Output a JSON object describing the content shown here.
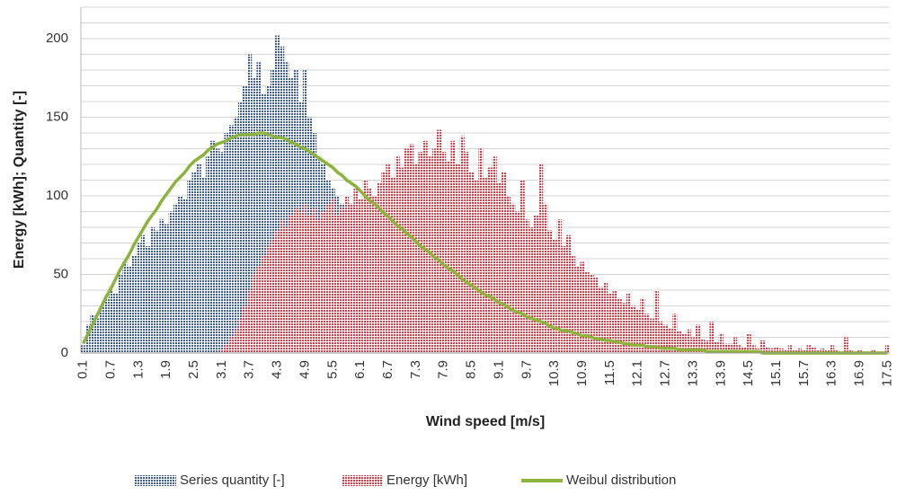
{
  "chart_data": {
    "type": "bar",
    "y_label": "Energy [kWh]; Quantity [-]",
    "x_label": "Wind speed [m/s]",
    "categories": [
      "0.1",
      null,
      null,
      null,
      null,
      null,
      "0.7",
      null,
      null,
      null,
      null,
      null,
      "1.3",
      null,
      null,
      null,
      null,
      null,
      "1.9",
      null,
      null,
      null,
      null,
      null,
      "2.5",
      null,
      null,
      null,
      null,
      null,
      "3.1",
      null,
      null,
      null,
      null,
      null,
      "3.7",
      null,
      null,
      null,
      null,
      null,
      "4.3",
      null,
      null,
      null,
      null,
      null,
      "4.9",
      null,
      null,
      null,
      null,
      null,
      "5.5",
      null,
      null,
      null,
      null,
      null,
      "6.1",
      null,
      null,
      null,
      null,
      null,
      "6.7",
      null,
      null,
      null,
      null,
      null,
      "7.3",
      null,
      null,
      null,
      null,
      null,
      "7.9",
      null,
      null,
      null,
      null,
      null,
      "8.5",
      null,
      null,
      null,
      null,
      null,
      "9.1",
      null,
      null,
      null,
      null,
      null,
      "9.7",
      null,
      null,
      null,
      null,
      null,
      "10.3",
      null,
      null,
      null,
      null,
      null,
      "10.9",
      null,
      null,
      null,
      null,
      null,
      "11.5",
      null,
      null,
      null,
      null,
      null,
      "12.1",
      null,
      null,
      null,
      null,
      null,
      "12.7",
      null,
      null,
      null,
      null,
      null,
      "13.3",
      null,
      null,
      null,
      null,
      null,
      "13.9",
      null,
      null,
      null,
      null,
      null,
      "14.5",
      null,
      null,
      null,
      null,
      null,
      "15.1",
      null,
      null,
      null,
      null,
      null,
      "15.7",
      null,
      null,
      null,
      null,
      null,
      "16.3",
      null,
      null,
      null,
      null,
      null,
      "16.9",
      null,
      null,
      null,
      null,
      null,
      "17.5"
    ],
    "series": [
      {
        "name": "Series quantity [-]",
        "type": "bar",
        "color": "#3d5c9c",
        "values": [
          5,
          18,
          24,
          22,
          30,
          35,
          42,
          38,
          50,
          58,
          55,
          62,
          70,
          75,
          68,
          80,
          78,
          85,
          82,
          90,
          95,
          100,
          98,
          110,
          115,
          120,
          112,
          125,
          135,
          130,
          128,
          140,
          145,
          150,
          160,
          170,
          190,
          175,
          185,
          165,
          170,
          180,
          202,
          195,
          185,
          175,
          180,
          160,
          180,
          150,
          140,
          125,
          120,
          110,
          105,
          100,
          95,
          90,
          95,
          100,
          90,
          85,
          80,
          78,
          75,
          70,
          65,
          62,
          60,
          58,
          55,
          50,
          48,
          45,
          42,
          40,
          38,
          35,
          32,
          30,
          28,
          26,
          24,
          22,
          20,
          18,
          16,
          15,
          14,
          12,
          11,
          10,
          9,
          8,
          7,
          6,
          5,
          5,
          4,
          4,
          3,
          3,
          2,
          2,
          2,
          1,
          1,
          1,
          1,
          0,
          0,
          0,
          0,
          0,
          0,
          0,
          0,
          0,
          0,
          0,
          0,
          0,
          0,
          0,
          0,
          0,
          0,
          0,
          0,
          0,
          0,
          0,
          0,
          0,
          0,
          0,
          0,
          0,
          0,
          0,
          0,
          0,
          0,
          0,
          0,
          0,
          0,
          0,
          0,
          0,
          0,
          0,
          0,
          0,
          0,
          0,
          0,
          0,
          0,
          0,
          0,
          0,
          0,
          0,
          0,
          0,
          0,
          0,
          0,
          0,
          0,
          0,
          0,
          0,
          0
        ]
      },
      {
        "name": "Energy [kWh]",
        "type": "bar",
        "color": "#e23a44",
        "values": [
          0,
          0,
          0,
          0,
          0,
          0,
          0,
          0,
          0,
          0,
          0,
          0,
          0,
          0,
          0,
          0,
          0,
          0,
          0,
          0,
          0,
          0,
          0,
          0,
          0,
          0,
          0,
          0,
          0,
          0,
          2,
          5,
          10,
          15,
          22,
          30,
          40,
          50,
          55,
          62,
          68,
          72,
          78,
          85,
          80,
          88,
          92,
          90,
          95,
          88,
          92,
          85,
          90,
          95,
          98,
          88,
          92,
          100,
          95,
          105,
          98,
          110,
          105,
          100,
          108,
          115,
          120,
          112,
          125,
          118,
          130,
          133,
          120,
          128,
          135,
          125,
          130,
          142,
          128,
          122,
          135,
          120,
          138,
          128,
          115,
          110,
          130,
          112,
          118,
          125,
          108,
          115,
          100,
          95,
          90,
          110,
          85,
          80,
          88,
          120,
          95,
          78,
          72,
          85,
          68,
          75,
          62,
          55,
          58,
          52,
          50,
          48,
          42,
          45,
          38,
          40,
          35,
          32,
          38,
          30,
          28,
          35,
          25,
          22,
          40,
          20,
          18,
          16,
          25,
          14,
          12,
          15,
          10,
          18,
          9,
          8,
          20,
          7,
          12,
          6,
          6,
          10,
          5,
          4,
          12,
          5,
          3,
          8,
          4,
          3,
          4,
          3,
          2,
          5,
          2,
          3,
          2,
          5,
          4,
          2,
          3,
          2,
          5,
          2,
          1,
          10,
          2,
          1,
          2,
          1,
          1,
          2,
          1,
          1,
          5
        ]
      },
      {
        "name": "Weibul distribution",
        "type": "line",
        "color": "#8cb43c",
        "values": [
          6,
          12,
          18,
          24,
          30,
          36,
          41,
          47,
          53,
          58,
          63,
          69,
          74,
          79,
          84,
          88,
          92,
          97,
          101,
          105,
          109,
          112,
          115,
          119,
          122,
          124,
          126,
          129,
          131,
          133,
          134,
          135,
          137,
          138,
          139,
          139,
          139,
          139,
          140,
          140,
          139,
          138,
          137,
          137,
          136,
          134,
          133,
          131,
          130,
          128,
          126,
          124,
          122,
          120,
          118,
          115,
          113,
          110,
          108,
          106,
          103,
          100,
          97,
          95,
          92,
          89,
          87,
          84,
          81,
          79,
          76,
          74,
          71,
          68,
          66,
          64,
          61,
          59,
          56,
          54,
          52,
          50,
          47,
          45,
          43,
          41,
          39,
          37,
          36,
          34,
          32,
          31,
          29,
          27,
          26,
          25,
          23,
          22,
          21,
          20,
          19,
          17,
          16,
          15,
          14,
          14,
          13,
          12,
          11,
          11,
          10,
          9,
          9,
          8,
          8,
          7,
          7,
          6,
          6,
          5,
          5,
          5,
          4,
          4,
          4,
          3,
          3,
          3,
          3,
          2,
          2,
          2,
          2,
          2,
          2,
          1,
          1,
          1,
          1,
          1,
          1,
          1,
          1,
          1,
          1,
          1,
          1,
          0,
          0,
          0,
          0,
          0,
          0,
          0,
          0,
          0,
          0,
          0,
          0,
          0,
          0,
          0,
          0,
          0,
          0,
          0,
          0,
          0,
          0,
          0,
          0,
          0,
          0,
          0,
          0
        ]
      }
    ],
    "ylim": [
      0,
      220
    ],
    "yticks": [
      0,
      50,
      100,
      150,
      200
    ],
    "minor_yticks": [
      10,
      20,
      30,
      40,
      60,
      70,
      80,
      90,
      110,
      120,
      130,
      140,
      160,
      170,
      180,
      190,
      210,
      220
    ],
    "grid": true,
    "legend": "bottom"
  }
}
